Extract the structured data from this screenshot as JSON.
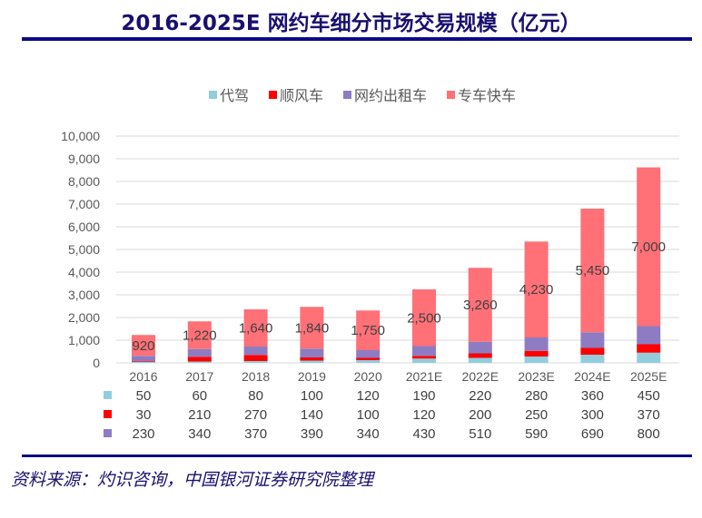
{
  "title": "2016-2025E 网约车细分市场交易规模（亿元）",
  "source": "资料来源：灼识咨询，中国银河证券研究院整理",
  "chart_data": {
    "type": "bar",
    "stacked": true,
    "categories": [
      "2016",
      "2017",
      "2018",
      "2019",
      "2020",
      "2021E",
      "2022E",
      "2023E",
      "2024E",
      "2025E"
    ],
    "ylim": [
      0,
      10000
    ],
    "yticks": [
      "0",
      "1,000",
      "2,000",
      "3,000",
      "4,000",
      "5,000",
      "6,000",
      "7,000",
      "8,000",
      "9,000",
      "10,000"
    ],
    "grid": true,
    "legend_position": "top",
    "series": [
      {
        "name": "代驾",
        "color": "#92cddc",
        "values": [
          50,
          60,
          80,
          100,
          120,
          190,
          220,
          280,
          360,
          450
        ]
      },
      {
        "name": "顺风车",
        "color": "#ff0000",
        "values": [
          30,
          210,
          270,
          140,
          100,
          120,
          200,
          250,
          300,
          370
        ]
      },
      {
        "name": "网约出租车",
        "color": "#8e7cc3",
        "values": [
          230,
          340,
          370,
          390,
          340,
          430,
          510,
          590,
          690,
          800
        ]
      },
      {
        "name": "专车快车",
        "color": "#ff7077",
        "values": [
          920,
          1220,
          1640,
          1840,
          1750,
          2500,
          3260,
          4230,
          5450,
          7000
        ]
      }
    ]
  }
}
